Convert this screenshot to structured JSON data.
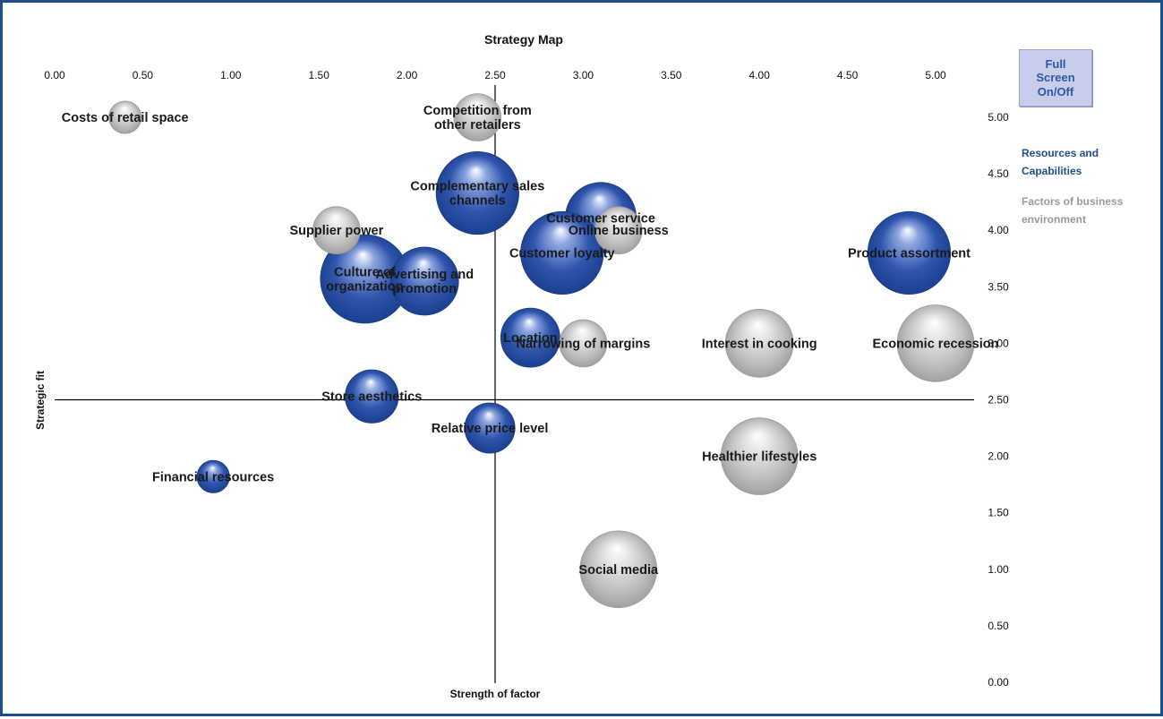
{
  "button": {
    "full_screen": "Full\nScreen\nOn/Off"
  },
  "legend": {
    "items": [
      {
        "label": "Resources and Capabilities",
        "color": "#1f4e8c"
      },
      {
        "label": "Factors of business environment",
        "color": "#9a9a9a"
      }
    ]
  },
  "chart_data": {
    "type": "scatter",
    "title": "Strategy Map",
    "xlabel": "Strength of factor",
    "ylabel": "Strategic fit",
    "xlim": [
      0,
      5.25
    ],
    "ylim": [
      0,
      5.25
    ],
    "x_ticks": [
      "0.00",
      "0.50",
      "1.00",
      "1.50",
      "2.00",
      "2.50",
      "3.00",
      "3.50",
      "4.00",
      "4.50",
      "5.00"
    ],
    "y_ticks": [
      "0.00",
      "0.50",
      "1.00",
      "1.50",
      "2.00",
      "2.50",
      "3.00",
      "3.50",
      "4.00",
      "4.50",
      "5.00"
    ],
    "quadrant_lines": {
      "x": 2.5,
      "y": 2.5
    },
    "series": [
      {
        "name": "Resources and Capabilities",
        "color": "#1f4e8c",
        "points": [
          {
            "label": "Complementary sales channels",
            "x": 2.4,
            "y": 4.33,
            "size": 2.8
          },
          {
            "label": "Customer service",
            "x": 3.1,
            "y": 4.11,
            "size": 2.4
          },
          {
            "label": "Customer loyalty",
            "x": 2.88,
            "y": 3.8,
            "size": 2.8
          },
          {
            "label": "Product assortment",
            "x": 4.85,
            "y": 3.8,
            "size": 2.8
          },
          {
            "label": "Culture of organization",
            "x": 1.76,
            "y": 3.57,
            "size": 3.0
          },
          {
            "label": "Advertising and promotion",
            "x": 2.1,
            "y": 3.55,
            "size": 2.3
          },
          {
            "label": "Location",
            "x": 2.7,
            "y": 3.05,
            "size": 2.0
          },
          {
            "label": "Store aesthetics",
            "x": 1.8,
            "y": 2.53,
            "size": 1.8
          },
          {
            "label": "Relative price level",
            "x": 2.47,
            "y": 2.25,
            "size": 1.7
          },
          {
            "label": "Financial resources",
            "x": 0.9,
            "y": 1.82,
            "size": 1.1
          }
        ]
      },
      {
        "name": "Factors of business environment",
        "color": "#a8a8a8",
        "points": [
          {
            "label": "Costs of retail space",
            "x": 0.4,
            "y": 5.0,
            "size": 1.1
          },
          {
            "label": "Competition from other retailers",
            "x": 2.4,
            "y": 5.0,
            "size": 1.6
          },
          {
            "label": "Online business",
            "x": 3.2,
            "y": 4.0,
            "size": 1.6
          },
          {
            "label": "Supplier power",
            "x": 1.6,
            "y": 4.0,
            "size": 1.6
          },
          {
            "label": "Narrowing of margins",
            "x": 3.0,
            "y": 3.0,
            "size": 1.6
          },
          {
            "label": "Interest in cooking",
            "x": 4.0,
            "y": 3.0,
            "size": 2.3
          },
          {
            "label": "Economic recession",
            "x": 5.0,
            "y": 3.0,
            "size": 2.6
          },
          {
            "label": "Healthier lifestyles",
            "x": 4.0,
            "y": 2.0,
            "size": 2.6
          },
          {
            "label": "Social media",
            "x": 3.2,
            "y": 1.0,
            "size": 2.6
          }
        ]
      }
    ]
  }
}
